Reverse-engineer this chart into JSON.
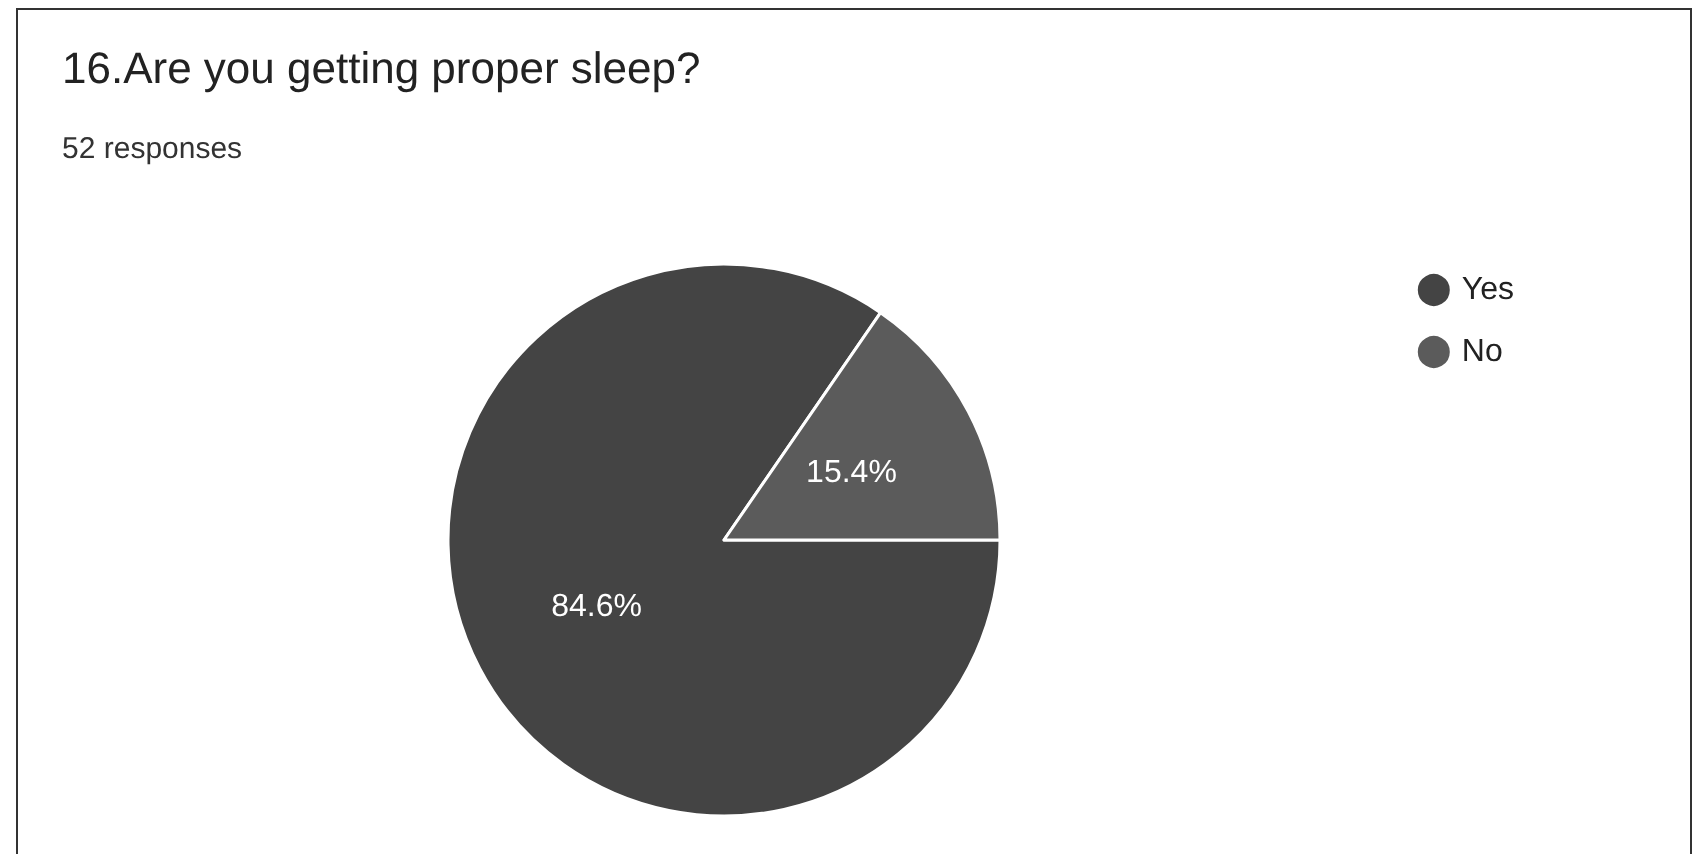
{
  "chart_data": {
    "type": "pie",
    "title": "16.Are you getting proper sleep?",
    "subtitle": "52 responses",
    "categories": [
      "Yes",
      "No"
    ],
    "values": [
      84.6,
      15.4
    ],
    "colors": [
      "#444444",
      "#5b5b5b"
    ],
    "value_labels": [
      "84.6%",
      "15.4%"
    ],
    "legend": "top right"
  }
}
